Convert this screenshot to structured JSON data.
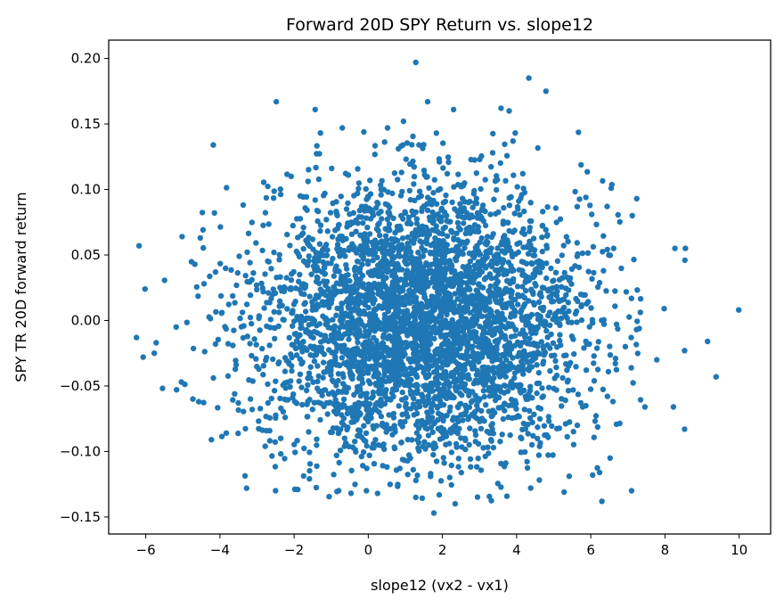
{
  "chart_data": {
    "type": "scatter",
    "title": "Forward 20D SPY Return vs. slope12",
    "xlabel": "slope12 (vx2 - vx1)",
    "ylabel": "SPY TR 20D forward return",
    "xlim": [
      -7.0,
      10.85
    ],
    "ylim": [
      -0.163,
      0.214
    ],
    "xticks": [
      -6,
      -4,
      -2,
      0,
      2,
      4,
      6,
      8,
      10
    ],
    "xticklabels": [
      "−6",
      "−4",
      "−2",
      "0",
      "2",
      "4",
      "6",
      "8",
      "10"
    ],
    "yticks": [
      -0.15,
      -0.1,
      -0.05,
      0.0,
      0.05,
      0.1,
      0.15,
      0.2
    ],
    "yticklabels": [
      "−0.15",
      "−0.10",
      "−0.05",
      "0.00",
      "0.05",
      "0.10",
      "0.15",
      "0.20"
    ],
    "grid": false,
    "legend": "none",
    "marker_color": "#1f77b4",
    "points_note": "approx. 4000 points, roughly normal: x mean ≈ 1.5, sd ≈ 2.2; y mean ≈ 0.0, sd ≈ 0.05",
    "points": [
      [
        9.99,
        0.008
      ],
      [
        9.38,
        -0.043
      ],
      [
        9.15,
        -0.016
      ],
      [
        8.55,
        0.055
      ],
      [
        8.54,
        0.046
      ],
      [
        8.53,
        -0.023
      ],
      [
        8.53,
        -0.083
      ],
      [
        8.27,
        0.055
      ],
      [
        8.23,
        -0.066
      ],
      [
        7.98,
        0.009
      ],
      [
        7.78,
        -0.03
      ],
      [
        7.46,
        -0.066
      ],
      [
        7.24,
        0.093
      ],
      [
        7.12,
        0.08
      ],
      [
        7.09,
        -0.013
      ],
      [
        7.1,
        -0.13
      ],
      [
        6.55,
        0.101
      ],
      [
        6.52,
        -0.105
      ],
      [
        6.3,
        -0.138
      ],
      [
        6.05,
        -0.118
      ],
      [
        5.28,
        -0.131
      ],
      [
        4.79,
        0.175
      ],
      [
        4.33,
        0.185
      ],
      [
        3.8,
        0.16
      ],
      [
        3.58,
        0.162
      ],
      [
        2.3,
        0.161
      ],
      [
        1.6,
        0.167
      ],
      [
        1.28,
        0.197
      ],
      [
        0.95,
        0.152
      ],
      [
        0.52,
        0.147
      ],
      [
        -0.8,
        -0.13
      ],
      [
        -0.05,
        -0.13
      ],
      [
        0.25,
        -0.132
      ],
      [
        1.28,
        -0.135
      ],
      [
        1.77,
        -0.147
      ],
      [
        -1.43,
        0.161
      ],
      [
        -0.7,
        0.147
      ],
      [
        -2.5,
        -0.13
      ],
      [
        -3.28,
        -0.128
      ],
      [
        -2.48,
        0.167
      ],
      [
        -4.18,
        0.134
      ],
      [
        -4.23,
        -0.091
      ],
      [
        -3.83,
        -0.086
      ],
      [
        -4.57,
        -0.062
      ],
      [
        -4.73,
        -0.06
      ],
      [
        -4.53,
        0.063
      ],
      [
        -4.12,
        0.037
      ],
      [
        -5.18,
        -0.005
      ],
      [
        -5.02,
        0.064
      ],
      [
        -5.04,
        -0.047
      ],
      [
        -5.77,
        -0.025
      ],
      [
        -5.72,
        -0.017
      ],
      [
        -6.07,
        -0.028
      ],
      [
        -6.25,
        -0.013
      ],
      [
        -6.18,
        0.057
      ],
      [
        -6.02,
        0.024
      ],
      [
        -4.43,
        0.028
      ],
      [
        -4.12,
        -0.018
      ]
    ]
  }
}
